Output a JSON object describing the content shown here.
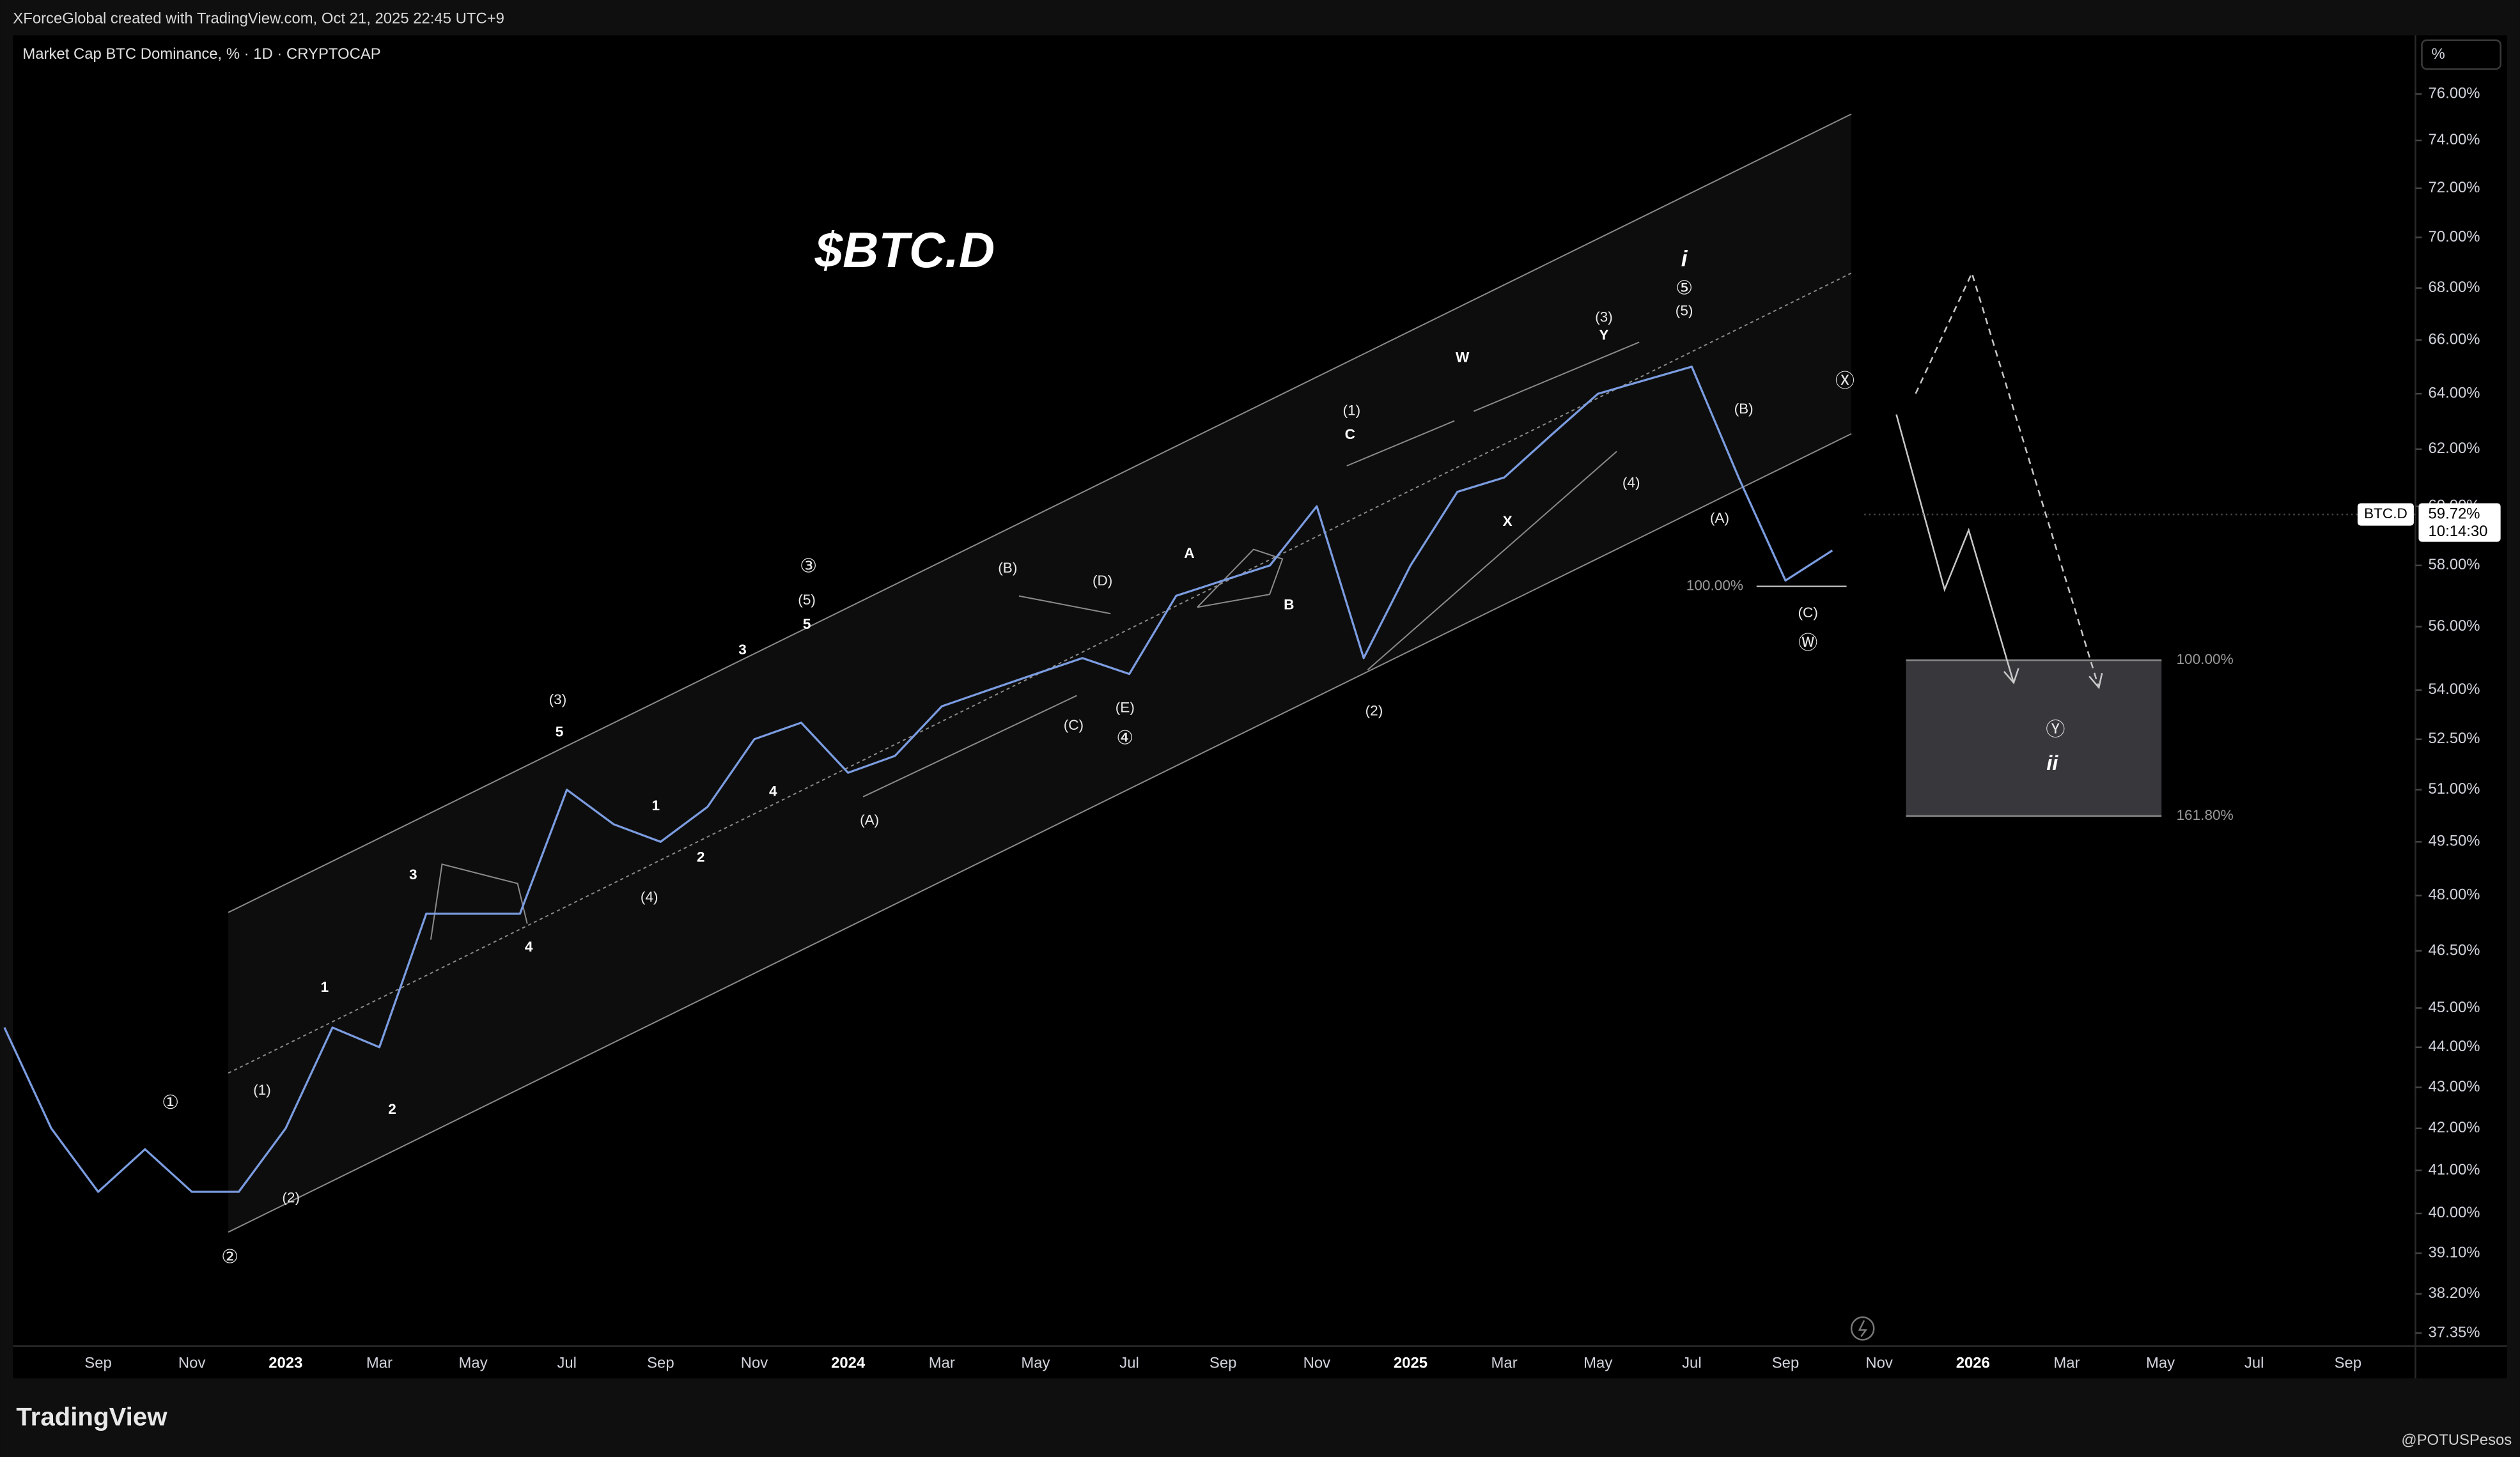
{
  "header": {
    "attribution": "XForceGlobal created with TradingView.com, Oct 21, 2025 22:45 UTC+9",
    "symbol": "Market Cap BTC Dominance, % · 1D · CRYPTOCAP",
    "unit_button": "%"
  },
  "chart_data": {
    "type": "line",
    "title": "$BTC.D",
    "categories": [
      null,
      null,
      "Sep",
      null,
      "Nov",
      null,
      "2023",
      null,
      "Mar",
      null,
      "May",
      null,
      "Jul",
      null,
      "Sep",
      null,
      "Nov",
      null,
      "2024",
      null,
      "Mar",
      null,
      "May",
      null,
      "Jul",
      null,
      "Sep",
      null,
      "Nov",
      null,
      "2025",
      null,
      "Mar",
      null,
      "May",
      null,
      "Jul",
      null,
      "Sep",
      null,
      "Nov",
      null,
      "2026",
      null,
      "Mar",
      null,
      "May",
      null,
      "Jul",
      null,
      "Sep"
    ],
    "series": [
      {
        "name": "BTC.D",
        "color": "#7b9ce0",
        "values": [
          44.5,
          42,
          40.5,
          41.5,
          40.5,
          40.5,
          42,
          44.5,
          44,
          47.5,
          47.5,
          47.5,
          51,
          50,
          49.5,
          50.5,
          52.5,
          53,
          51.5,
          52,
          53.5,
          54,
          54.5,
          55,
          54.5,
          57,
          57.5,
          58,
          60,
          55,
          58,
          60.5,
          61,
          62.5,
          64,
          64.5,
          65,
          61,
          57.5,
          58.5,
          null,
          null,
          null,
          null,
          null,
          null,
          null,
          null,
          null,
          null,
          null
        ]
      }
    ],
    "log_scale": true,
    "grid": false,
    "ylim": [
      37.07,
      78.6
    ],
    "yticks": [
      {
        "value": 76,
        "label": "76.00%"
      },
      {
        "value": 74,
        "label": "74.00%"
      },
      {
        "value": 72,
        "label": "72.00%"
      },
      {
        "value": 70,
        "label": "70.00%"
      },
      {
        "value": 68,
        "label": "68.00%"
      },
      {
        "value": 66,
        "label": "66.00%"
      },
      {
        "value": 64,
        "label": "64.00%"
      },
      {
        "value": 62,
        "label": "62.00%"
      },
      {
        "value": 60,
        "label": "60.00%"
      },
      {
        "value": 58,
        "label": "58.00%"
      },
      {
        "value": 56,
        "label": "56.00%"
      },
      {
        "value": 54,
        "label": "54.00%"
      },
      {
        "value": 52.5,
        "label": "52.50%"
      },
      {
        "value": 51,
        "label": "51.00%"
      },
      {
        "value": 49.5,
        "label": "49.50%"
      },
      {
        "value": 48,
        "label": "48.00%"
      },
      {
        "value": 46.5,
        "label": "46.50%"
      },
      {
        "value": 45,
        "label": "45.00%"
      },
      {
        "value": 44,
        "label": "44.00%"
      },
      {
        "value": 43,
        "label": "43.00%"
      },
      {
        "value": 42,
        "label": "42.00%"
      },
      {
        "value": 41,
        "label": "41.00%"
      },
      {
        "value": 40,
        "label": "40.00%"
      },
      {
        "value": 39.1,
        "label": "39.10%"
      },
      {
        "value": 38.2,
        "label": "38.20%"
      },
      {
        "value": 37.35,
        "label": "37.35%"
      }
    ],
    "price_tag": {
      "value": 59.72,
      "label": "59.72%"
    },
    "countdown": "10:14:30",
    "annotations": [
      "①",
      "②",
      "(1)",
      "(2)",
      "1",
      "2",
      "3",
      "4",
      "(3)",
      "5",
      "1",
      "2",
      "(4)",
      "3",
      "4",
      "③",
      "(5)",
      "5",
      "(A)",
      "(B)",
      "(C)",
      "(D)",
      "(E)",
      "④",
      "A",
      "B",
      "(1)",
      "C",
      "(2)",
      "W",
      "X",
      "Y",
      "(3)",
      "(4)",
      "i",
      "⑤",
      "(5)",
      "(B)",
      "(A)",
      "(C)",
      "Ⓦ",
      "Ⓧ",
      "Ⓨ",
      "ii",
      "100.00%",
      "100.00%",
      "161.80%"
    ]
  },
  "footer": {
    "brand": "TradingView",
    "author": "@POTUSPesos"
  }
}
